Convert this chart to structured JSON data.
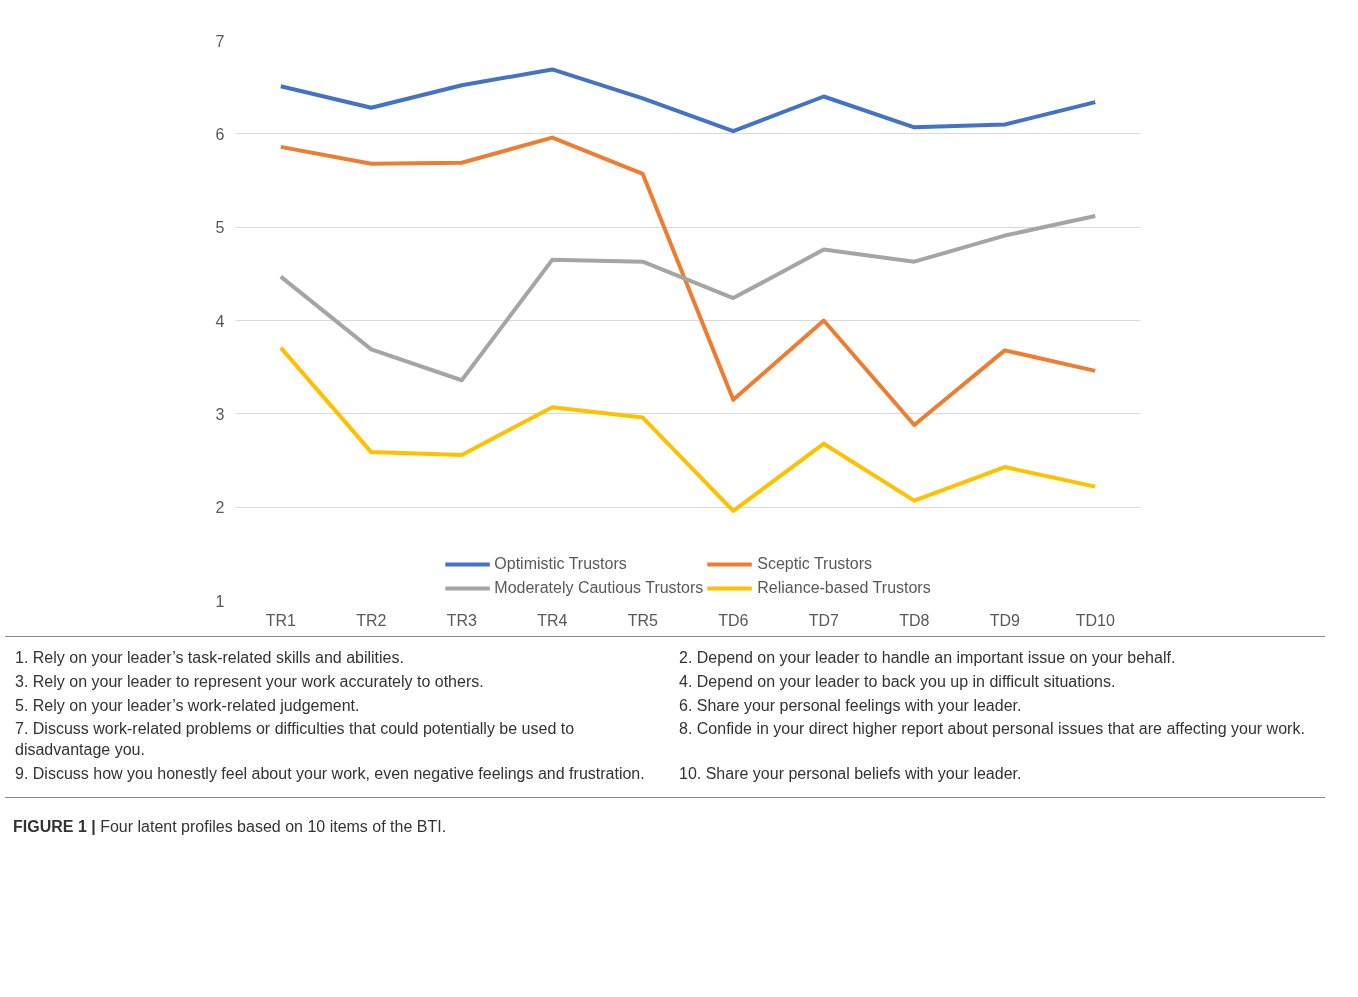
{
  "chart_data": {
    "type": "line",
    "categories": [
      "TR1",
      "TR2",
      "TR3",
      "TR4",
      "TR5",
      "TD6",
      "TD7",
      "TD8",
      "TD9",
      "TD10"
    ],
    "series": [
      {
        "name": "Optimistic Trustors",
        "color": "#4472c4",
        "values": [
          6.51,
          6.28,
          6.52,
          6.69,
          6.38,
          6.03,
          6.4,
          6.07,
          6.1,
          6.34
        ]
      },
      {
        "name": "Sceptic Trustors",
        "color": "#ed7d31",
        "values": [
          5.86,
          5.68,
          5.69,
          5.96,
          5.57,
          3.15,
          4.0,
          2.88,
          3.68,
          3.46
        ]
      },
      {
        "name": "Moderately Cautious Trustors",
        "color": "#a5a5a5",
        "values": [
          4.47,
          3.69,
          3.36,
          4.65,
          4.63,
          4.24,
          4.76,
          4.63,
          4.91,
          5.12
        ]
      },
      {
        "name": "Reliance-based Trustors",
        "color": "#ffc000",
        "values": [
          3.71,
          2.59,
          2.56,
          3.07,
          2.96,
          1.96,
          2.68,
          2.07,
          2.43,
          2.22
        ]
      }
    ],
    "ylim": [
      1,
      7
    ],
    "yticks": [
      1,
      2,
      3,
      4,
      5,
      6,
      7
    ],
    "grid": "y",
    "legend": "bottom",
    "marker": "none",
    "line_style": "solid",
    "annotations": [
      "1. Rely on your leader’s task-related skills and abilities.",
      "2. Depend on your leader to handle an important issue on your behalf.",
      "3. Rely on your leader to represent your work accurately to others.",
      "4. Depend on your leader to back you up in difficult situations.",
      "5. Rely on your leader’s work-related judgement.",
      "6. Share your personal feelings with your leader.",
      "7. Discuss work-related problems or difficulties that could potentially be used to disadvantage you.",
      "8. Confide in your direct higher report about personal issues that are affecting your work.",
      "9. Discuss how you honestly feel about your work, even negative feelings and frustration.",
      "10. Share your personal beliefs with your leader.",
      "FIGURE 1 | Four latent profiles based on 10 items of the BTI."
    ]
  }
}
